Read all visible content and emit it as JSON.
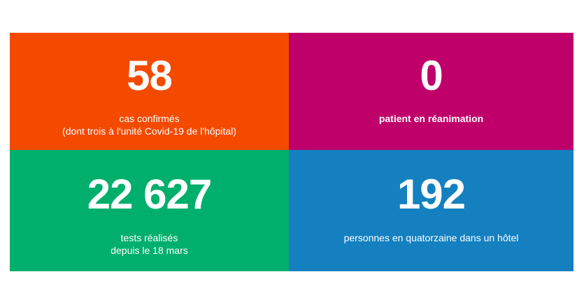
{
  "colors": {
    "orange": "#F44A00",
    "magenta": "#C0006A",
    "green": "#00AF6C",
    "blue": "#1480C0"
  },
  "tiles": [
    {
      "value": "58",
      "label_line1": "cas confirmés",
      "label_line2": "(dont trois à l'unité Covid-19 de l'hôpital)"
    },
    {
      "value": "0",
      "label_line1": "patient en réanimation"
    },
    {
      "value": "22 627",
      "label_line1": "tests réalisés",
      "label_line2": "depuis le 18 mars"
    },
    {
      "value": "192",
      "label_line1": "personnes en quatorzaine dans un hôtel"
    }
  ]
}
